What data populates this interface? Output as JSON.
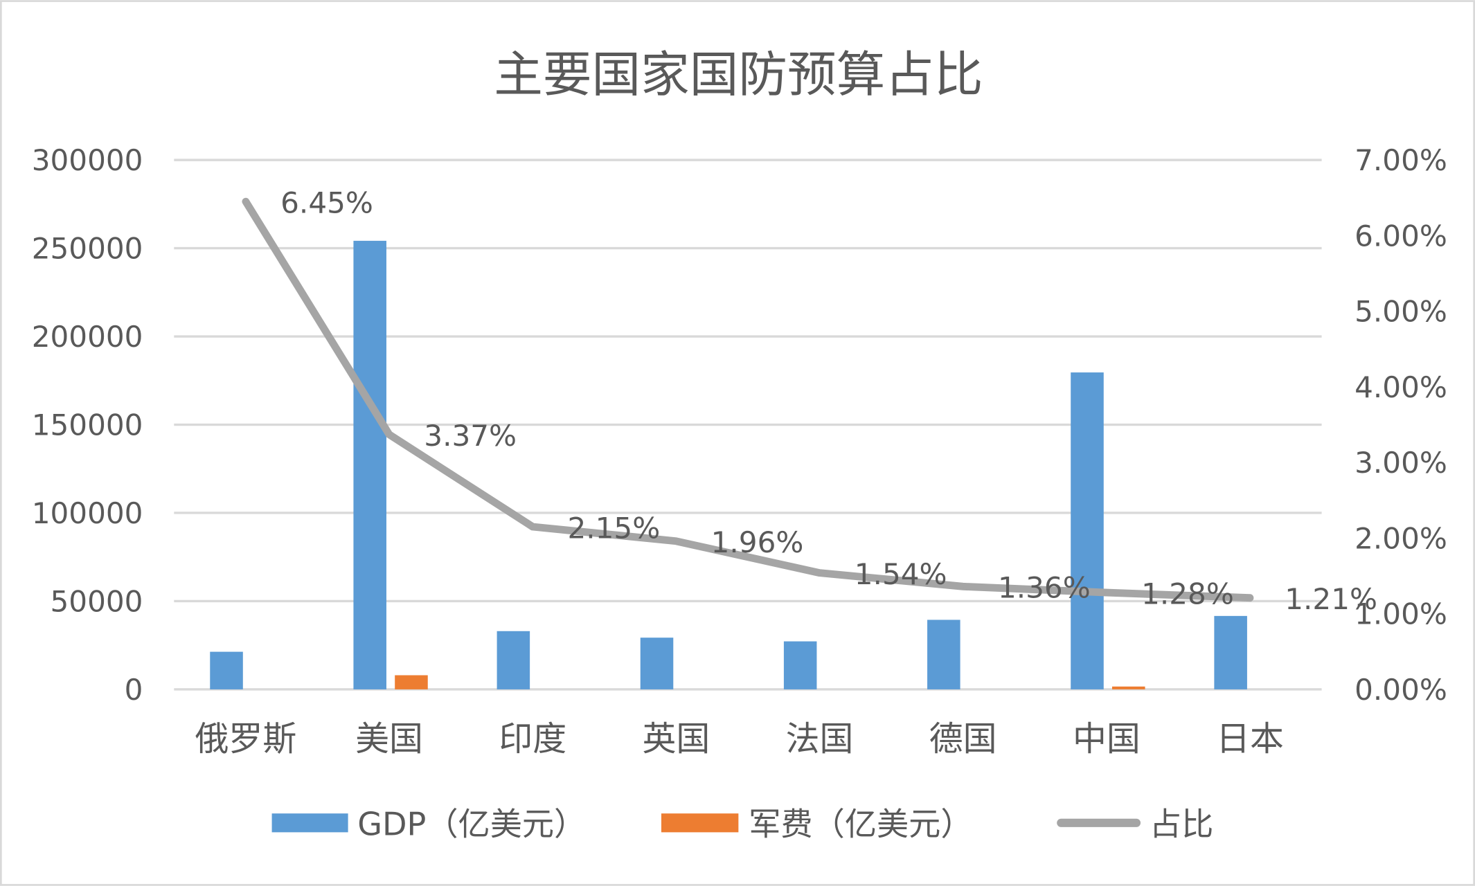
{
  "chart_data": {
    "type": "bar+line",
    "title": "主要国家国防预算占比",
    "categories": [
      "俄罗斯",
      "美国",
      "印度",
      "英国",
      "法国",
      "德国",
      "中国",
      "日本"
    ],
    "series": [
      {
        "name": "GDP（亿美元）",
        "type": "bar",
        "axis": "left",
        "color": "#5B9BD5",
        "values": [
          21300,
          254200,
          33000,
          29300,
          27200,
          39400,
          179600,
          41600
        ]
      },
      {
        "name": "军费（亿美元）",
        "type": "bar",
        "axis": "left",
        "color": "#ED7D31",
        "values": [
          0,
          8000,
          0,
          0,
          0,
          0,
          1600,
          0
        ]
      },
      {
        "name": "占比",
        "type": "line",
        "axis": "right",
        "color": "#A5A5A5",
        "values": [
          6.45,
          3.37,
          2.15,
          1.96,
          1.54,
          1.36,
          1.28,
          1.21
        ],
        "data_labels": [
          "6.45%",
          "3.37%",
          "2.15%",
          "1.96%",
          "1.54%",
          "1.36%",
          "1.28%",
          "1.21%"
        ]
      }
    ],
    "y_left": {
      "range": [
        0,
        300000
      ],
      "ticks": [
        "0",
        "50000",
        "100000",
        "150000",
        "200000",
        "250000",
        "300000"
      ]
    },
    "y_right": {
      "range": [
        0,
        7
      ],
      "ticks": [
        "0.00%",
        "1.00%",
        "2.00%",
        "3.00%",
        "4.00%",
        "5.00%",
        "6.00%",
        "7.00%"
      ]
    },
    "grid": true,
    "legend": "bottom"
  }
}
